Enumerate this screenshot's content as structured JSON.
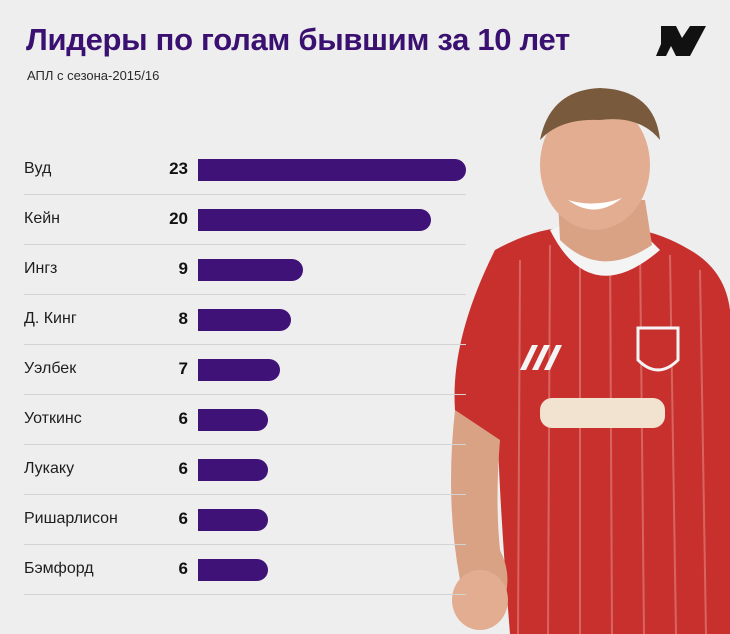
{
  "header": {
    "title": "Лидеры по голам бывшим за 10 лет",
    "subtitle": "АПЛ с сезона-2015/16"
  },
  "colors": {
    "bar": "#3f1278",
    "title": "#3a1070",
    "background": "#eeeeee"
  },
  "icons": {
    "logo": "publisher-logo-icon",
    "photo": "player-photo"
  },
  "chart_data": {
    "type": "bar",
    "orientation": "horizontal",
    "title": "Лидеры по голам бывшим за 10 лет",
    "subtitle": "АПЛ с сезона-2015/16",
    "categories": [
      "Вуд",
      "Кейн",
      "Ингз",
      "Д. Кинг",
      "Уэлбек",
      "Уоткинс",
      "Лукаку",
      "Ришарлисон",
      "Бэмфорд"
    ],
    "values": [
      23,
      20,
      9,
      8,
      7,
      6,
      6,
      6,
      6
    ],
    "xlim": [
      0,
      23
    ],
    "grid": false,
    "legend": "none"
  }
}
